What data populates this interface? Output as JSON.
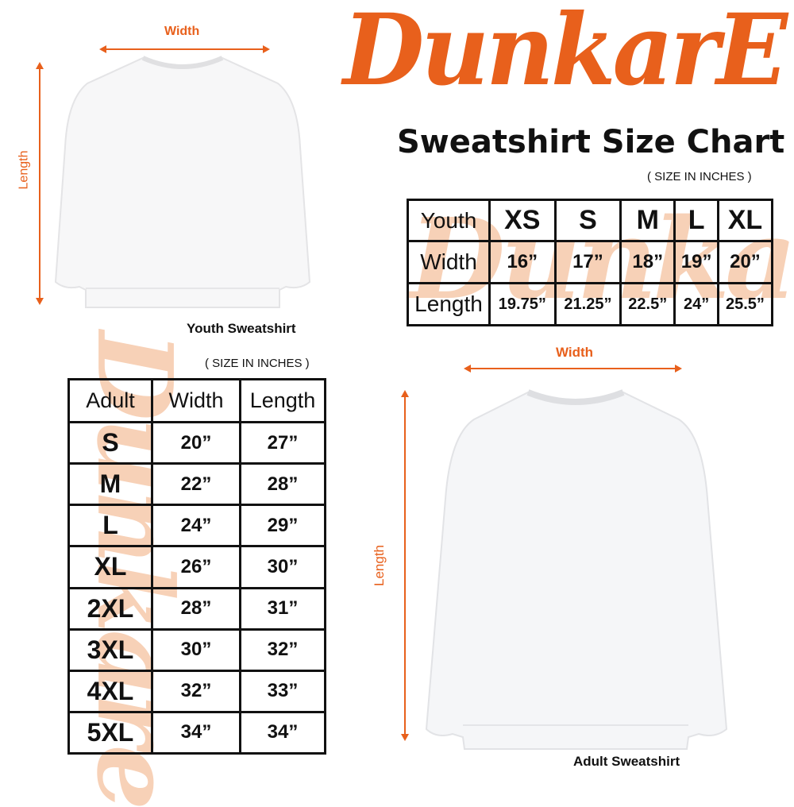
{
  "brand": {
    "logo_text": "DunkarE",
    "color": "#e8601c"
  },
  "title": "Sweatshirt Size Chart",
  "youth": {
    "size_note": "( SIZE IN INCHES )",
    "width_label": "Width",
    "length_label": "Length",
    "caption": "Youth Sweatshirt",
    "table": {
      "header": [
        "Youth",
        "XS",
        "S",
        "M",
        "L",
        "XL"
      ],
      "rows": [
        [
          "Width",
          "16”",
          "17”",
          "18”",
          "19”",
          "20”"
        ],
        [
          "Length",
          "19.75”",
          "21.25”",
          "22.5”",
          "24”",
          "25.5”"
        ]
      ]
    }
  },
  "adult": {
    "size_note": "( SIZE IN INCHES )",
    "width_label": "Width",
    "length_label": "Length",
    "caption": "Adult Sweatshirt",
    "table": {
      "header": [
        "Adult",
        "Width",
        "Length"
      ],
      "rows": [
        [
          "S",
          "20”",
          "27”"
        ],
        [
          "M",
          "22”",
          "28”"
        ],
        [
          "L",
          "24”",
          "29”"
        ],
        [
          "XL",
          "26”",
          "30”"
        ],
        [
          "2XL",
          "28”",
          "31”"
        ],
        [
          "3XL",
          "30”",
          "32”"
        ],
        [
          "4XL",
          "32”",
          "33”"
        ],
        [
          "5XL",
          "34”",
          "34”"
        ]
      ]
    }
  }
}
